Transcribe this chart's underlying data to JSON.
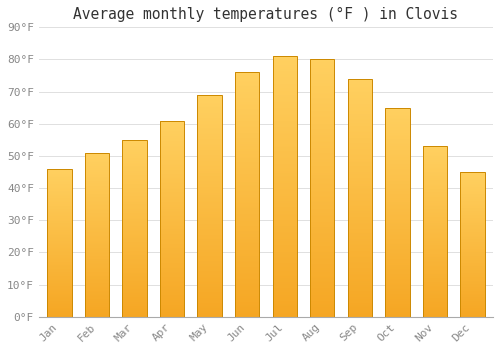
{
  "title": "Average monthly temperatures (°F ) in Clovis",
  "months": [
    "Jan",
    "Feb",
    "Mar",
    "Apr",
    "May",
    "Jun",
    "Jul",
    "Aug",
    "Sep",
    "Oct",
    "Nov",
    "Dec"
  ],
  "values": [
    46,
    51,
    55,
    61,
    69,
    76,
    81,
    80,
    74,
    65,
    53,
    45
  ],
  "bar_color_bottom": "#F5A623",
  "bar_color_top": "#FFD060",
  "background_color": "#FFFFFF",
  "grid_color": "#E0E0E0",
  "ylim": [
    0,
    90
  ],
  "yticks": [
    0,
    10,
    20,
    30,
    40,
    50,
    60,
    70,
    80,
    90
  ],
  "ytick_labels": [
    "0°F",
    "10°F",
    "20°F",
    "30°F",
    "40°F",
    "50°F",
    "60°F",
    "70°F",
    "80°F",
    "90°F"
  ],
  "title_fontsize": 10.5,
  "tick_fontsize": 8,
  "tick_color": "#888888",
  "bar_edge_color": "#CC8800",
  "font_family": "monospace"
}
